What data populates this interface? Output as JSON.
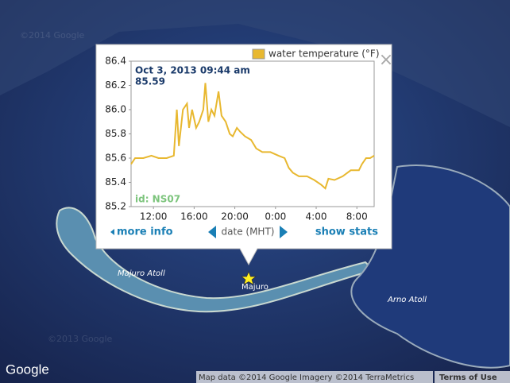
{
  "map": {
    "labels": [
      "Majuro Atoll",
      "Majuro",
      "Arno Atoll"
    ],
    "watermarks": [
      "©2014 Google",
      "©2013 Google"
    ],
    "logo": "Google",
    "attribution": "Map data ©2014 Google Imagery ©2014 TerraMetrics",
    "terms": "Terms of Use"
  },
  "popup": {
    "tooltip_date": "Oct 3, 2013 09:44 am",
    "tooltip_value": "85.59",
    "station_id": "id: NS07",
    "more_info": "more info",
    "x_nav_label": "date (MHT)",
    "show_stats": "show stats"
  },
  "chart_data": {
    "type": "line",
    "x": [
      -2.2,
      -1.8,
      -1.0,
      -0.2,
      0.5,
      1.3,
      2.0,
      2.3,
      2.5,
      2.9,
      3.3,
      3.5,
      3.8,
      4.2,
      4.5,
      4.9,
      5.1,
      5.4,
      5.7,
      6.0,
      6.4,
      6.7,
      7.1,
      7.5,
      7.8,
      8.2,
      8.5,
      9.0,
      9.6,
      10.1,
      10.7,
      11.5,
      12.3,
      12.9,
      13.3,
      13.7,
      14.3,
      15.1,
      15.8,
      16.5,
      16.9,
      17.2,
      17.8,
      18.6,
      19.4,
      20.2,
      20.5,
      20.9,
      21.3,
      21.7
    ],
    "series": [
      {
        "name": "water temperature (°F)",
        "color": "#e8b830",
        "values": [
          85.55,
          85.6,
          85.6,
          85.62,
          85.6,
          85.6,
          85.62,
          86.0,
          85.7,
          86.0,
          86.05,
          85.85,
          86.0,
          85.85,
          85.9,
          86.0,
          86.22,
          85.9,
          86.0,
          85.95,
          86.15,
          85.95,
          85.9,
          85.8,
          85.78,
          85.85,
          85.82,
          85.78,
          85.75,
          85.68,
          85.65,
          85.65,
          85.62,
          85.6,
          85.52,
          85.48,
          85.45,
          85.45,
          85.42,
          85.38,
          85.35,
          85.43,
          85.42,
          85.45,
          85.5,
          85.5,
          85.55,
          85.6,
          85.6,
          85.62
        ]
      }
    ],
    "xlim": [
      -2.2,
      21.7
    ],
    "xticks": [
      {
        "value": 0,
        "label": "12:00"
      },
      {
        "value": 4,
        "label": "16:00"
      },
      {
        "value": 8,
        "label": "20:00"
      },
      {
        "value": 12,
        "label": "0:00"
      },
      {
        "value": 16,
        "label": "4:00"
      },
      {
        "value": 20,
        "label": "8:00"
      }
    ],
    "ylim": [
      85.2,
      86.4
    ],
    "yticks": [
      {
        "value": 85.2,
        "label": "85.2"
      },
      {
        "value": 85.4,
        "label": "85.4"
      },
      {
        "value": 85.6,
        "label": "85.6"
      },
      {
        "value": 85.8,
        "label": "85.8"
      },
      {
        "value": 86.0,
        "label": "86.0"
      },
      {
        "value": 86.2,
        "label": "86.2"
      },
      {
        "value": 86.4,
        "label": "86.4"
      }
    ]
  }
}
